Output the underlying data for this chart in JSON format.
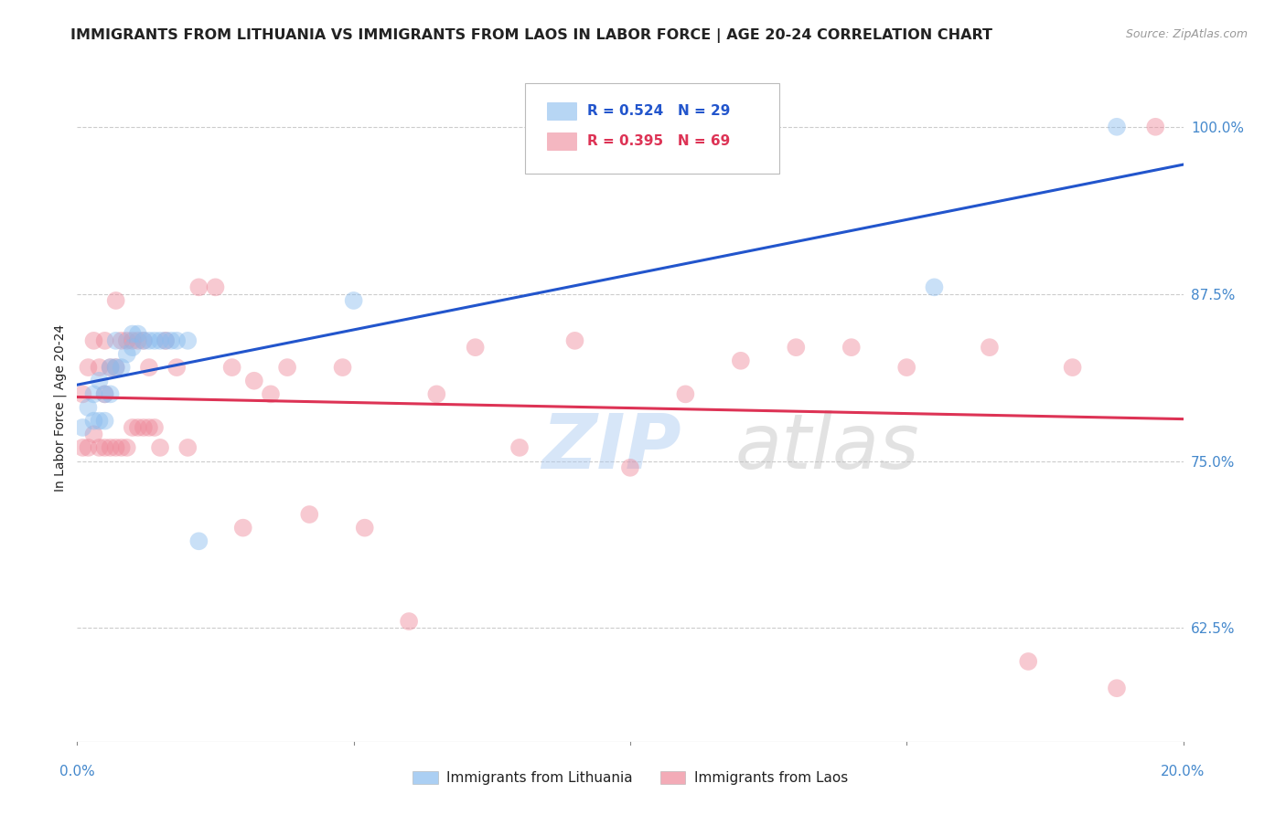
{
  "title": "IMMIGRANTS FROM LITHUANIA VS IMMIGRANTS FROM LAOS IN LABOR FORCE | AGE 20-24 CORRELATION CHART",
  "source": "Source: ZipAtlas.com",
  "ylabel": "In Labor Force | Age 20-24",
  "watermark": "ZIPatlas",
  "right_ytick_labels": [
    "100.0%",
    "87.5%",
    "75.0%",
    "62.5%"
  ],
  "right_ytick_values": [
    1.0,
    0.875,
    0.75,
    0.625
  ],
  "legend_labels_bottom": [
    "Immigrants from Lithuania",
    "Immigrants from Laos"
  ],
  "xlim": [
    0.0,
    0.2
  ],
  "ylim": [
    0.54,
    1.04
  ],
  "lithuania_x": [
    0.001,
    0.002,
    0.003,
    0.003,
    0.004,
    0.004,
    0.005,
    0.005,
    0.006,
    0.006,
    0.007,
    0.007,
    0.008,
    0.009,
    0.01,
    0.01,
    0.011,
    0.012,
    0.013,
    0.014,
    0.015,
    0.016,
    0.017,
    0.018,
    0.02,
    0.022,
    0.05,
    0.155,
    0.188
  ],
  "lithuania_y": [
    0.775,
    0.79,
    0.78,
    0.8,
    0.78,
    0.81,
    0.78,
    0.8,
    0.8,
    0.82,
    0.84,
    0.82,
    0.82,
    0.83,
    0.835,
    0.845,
    0.845,
    0.84,
    0.84,
    0.84,
    0.84,
    0.84,
    0.84,
    0.84,
    0.84,
    0.69,
    0.87,
    0.88,
    1.0
  ],
  "laos_x": [
    0.001,
    0.001,
    0.002,
    0.002,
    0.003,
    0.003,
    0.004,
    0.004,
    0.005,
    0.005,
    0.005,
    0.006,
    0.006,
    0.007,
    0.007,
    0.007,
    0.008,
    0.008,
    0.009,
    0.009,
    0.01,
    0.01,
    0.011,
    0.011,
    0.012,
    0.012,
    0.013,
    0.013,
    0.014,
    0.015,
    0.016,
    0.018,
    0.02,
    0.022,
    0.025,
    0.028,
    0.03,
    0.032,
    0.035,
    0.038,
    0.042,
    0.048,
    0.052,
    0.06,
    0.065,
    0.072,
    0.08,
    0.09,
    0.1,
    0.11,
    0.12,
    0.13,
    0.14,
    0.15,
    0.165,
    0.172,
    0.18,
    0.188,
    0.195
  ],
  "laos_y": [
    0.76,
    0.8,
    0.76,
    0.82,
    0.77,
    0.84,
    0.76,
    0.82,
    0.76,
    0.8,
    0.84,
    0.76,
    0.82,
    0.76,
    0.82,
    0.87,
    0.76,
    0.84,
    0.76,
    0.84,
    0.775,
    0.84,
    0.775,
    0.84,
    0.775,
    0.84,
    0.775,
    0.82,
    0.775,
    0.76,
    0.84,
    0.82,
    0.76,
    0.88,
    0.88,
    0.82,
    0.7,
    0.81,
    0.8,
    0.82,
    0.71,
    0.82,
    0.7,
    0.63,
    0.8,
    0.835,
    0.76,
    0.84,
    0.745,
    0.8,
    0.825,
    0.835,
    0.835,
    0.82,
    0.835,
    0.6,
    0.82,
    0.58,
    1.0
  ],
  "title_fontsize": 11.5,
  "source_fontsize": 9,
  "axis_label_fontsize": 10,
  "tick_fontsize": 11,
  "watermark_fontsize": 60,
  "background_color": "#ffffff",
  "grid_color": "#cccccc",
  "lithuania_color": "#88bbee",
  "laos_color": "#ee8899",
  "regression_blue": "#2255cc",
  "regression_pink": "#dd3355",
  "title_color": "#222222",
  "tick_color": "#4488cc",
  "source_color": "#999999",
  "legend_blue": "#88bbee",
  "legend_pink": "#ee8899",
  "legend_text_blue": "#2255cc",
  "legend_text_pink": "#dd3355"
}
